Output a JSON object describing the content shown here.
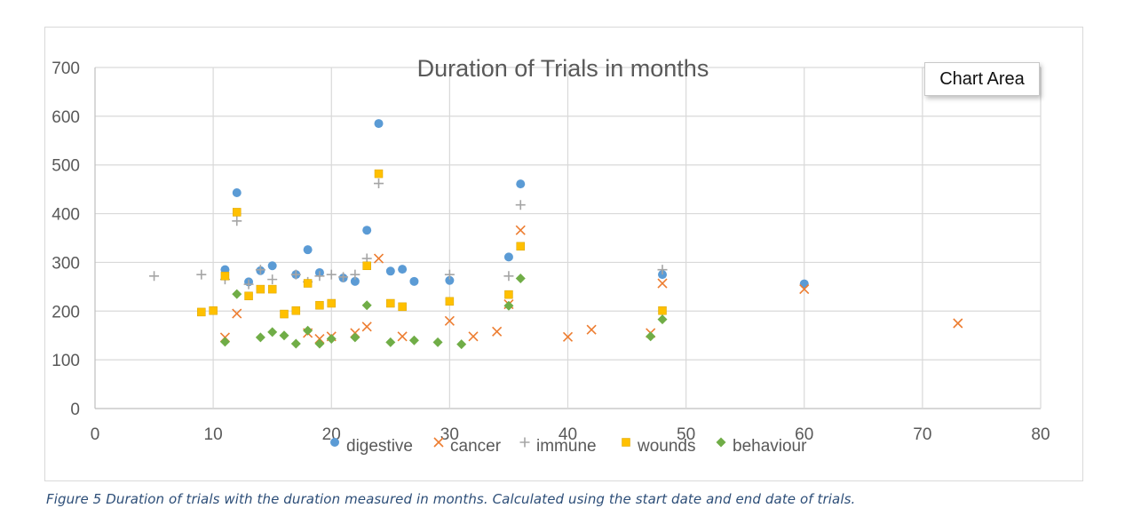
{
  "caption": "Figure 5 Duration of trials with the duration measured in months. Calculated using the start date and end date of trials.",
  "tooltip": "Chart Area",
  "chart_data": {
    "type": "scatter",
    "title": "Duration of Trials in months",
    "xlabel": "",
    "ylabel": "",
    "xlim": [
      0,
      80
    ],
    "ylim": [
      0,
      700
    ],
    "xticks": [
      0,
      10,
      20,
      30,
      40,
      50,
      60,
      70,
      80
    ],
    "yticks": [
      0,
      100,
      200,
      300,
      400,
      500,
      600,
      700
    ],
    "grid": "horizontal and vertical",
    "legend_position": "bottom",
    "series": [
      {
        "name": "digestive",
        "color": "#5b9bd5",
        "marker": "circle",
        "points": [
          [
            11,
            285
          ],
          [
            12,
            443
          ],
          [
            13,
            260
          ],
          [
            14,
            283
          ],
          [
            15,
            293
          ],
          [
            17,
            275
          ],
          [
            18,
            326
          ],
          [
            19,
            279
          ],
          [
            21,
            268
          ],
          [
            22,
            261
          ],
          [
            23,
            366
          ],
          [
            24,
            585
          ],
          [
            25,
            282
          ],
          [
            26,
            286
          ],
          [
            27,
            261
          ],
          [
            30,
            263
          ],
          [
            35,
            311
          ],
          [
            36,
            461
          ],
          [
            48,
            275
          ],
          [
            60,
            256
          ]
        ]
      },
      {
        "name": "cancer",
        "color": "#ed7d31",
        "marker": "x",
        "points": [
          [
            11,
            146
          ],
          [
            12,
            195
          ],
          [
            18,
            155
          ],
          [
            19,
            143
          ],
          [
            20,
            148
          ],
          [
            22,
            155
          ],
          [
            23,
            168
          ],
          [
            24,
            308
          ],
          [
            26,
            148
          ],
          [
            30,
            180
          ],
          [
            32,
            148
          ],
          [
            34,
            158
          ],
          [
            35,
            214
          ],
          [
            36,
            366
          ],
          [
            40,
            147
          ],
          [
            42,
            162
          ],
          [
            47,
            155
          ],
          [
            48,
            257
          ],
          [
            60,
            245
          ],
          [
            73,
            175
          ]
        ]
      },
      {
        "name": "immune",
        "color": "#a5a5a5",
        "marker": "plus",
        "points": [
          [
            5,
            272
          ],
          [
            9,
            275
          ],
          [
            11,
            265
          ],
          [
            12,
            385
          ],
          [
            13,
            255
          ],
          [
            14,
            285
          ],
          [
            15,
            265
          ],
          [
            17,
            275
          ],
          [
            18,
            260
          ],
          [
            19,
            272
          ],
          [
            20,
            275
          ],
          [
            21,
            270
          ],
          [
            22,
            275
          ],
          [
            23,
            308
          ],
          [
            24,
            462
          ],
          [
            30,
            275
          ],
          [
            35,
            272
          ],
          [
            36,
            418
          ],
          [
            48,
            285
          ]
        ]
      },
      {
        "name": "wounds",
        "color": "#ffc000",
        "marker": "square",
        "points": [
          [
            9,
            198
          ],
          [
            10,
            201
          ],
          [
            11,
            272
          ],
          [
            12,
            403
          ],
          [
            13,
            231
          ],
          [
            14,
            245
          ],
          [
            15,
            245
          ],
          [
            16,
            194
          ],
          [
            17,
            201
          ],
          [
            18,
            257
          ],
          [
            19,
            212
          ],
          [
            20,
            216
          ],
          [
            23,
            293
          ],
          [
            24,
            482
          ],
          [
            25,
            216
          ],
          [
            26,
            209
          ],
          [
            30,
            220
          ],
          [
            35,
            234
          ],
          [
            36,
            333
          ],
          [
            48,
            201
          ]
        ]
      },
      {
        "name": "behaviour",
        "color": "#70ad47",
        "marker": "diamond",
        "points": [
          [
            11,
            137
          ],
          [
            12,
            235
          ],
          [
            14,
            146
          ],
          [
            15,
            157
          ],
          [
            16,
            150
          ],
          [
            17,
            133
          ],
          [
            18,
            160
          ],
          [
            19,
            133
          ],
          [
            20,
            143
          ],
          [
            22,
            146
          ],
          [
            23,
            212
          ],
          [
            25,
            136
          ],
          [
            27,
            140
          ],
          [
            29,
            136
          ],
          [
            31,
            132
          ],
          [
            35,
            211
          ],
          [
            36,
            267
          ],
          [
            47,
            148
          ],
          [
            48,
            183
          ]
        ]
      }
    ]
  }
}
